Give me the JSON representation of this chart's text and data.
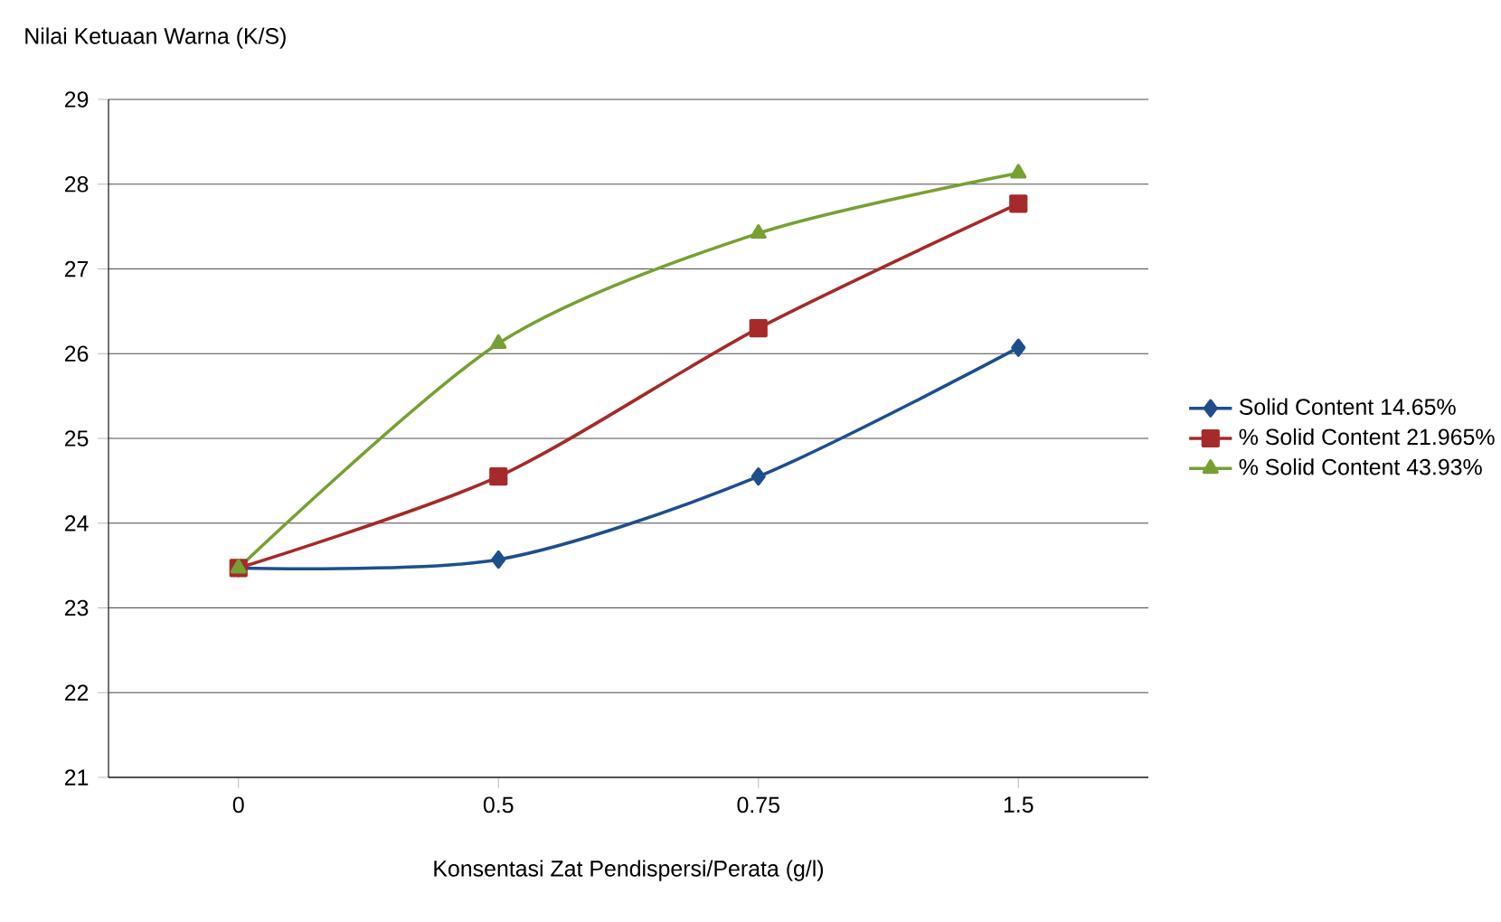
{
  "chart_data": {
    "type": "line",
    "ylabel": "Nilai Ketuaan Warna (K/S)",
    "xlabel": "Konsentasi Zat Pendispersi/Perata (g/l)",
    "categories": [
      "0",
      "0.5",
      "0.75",
      "1.5"
    ],
    "series": [
      {
        "name": "Solid Content 14.65%",
        "color": "#1f4e8c",
        "marker": "diamond",
        "values": [
          23.47,
          23.57,
          24.55,
          26.07
        ]
      },
      {
        "name": "% Solid Content 21.965%",
        "color": "#a52a2a",
        "marker": "square",
        "values": [
          23.47,
          24.55,
          26.3,
          27.77
        ]
      },
      {
        "name": "% Solid Content 43.93%",
        "color": "#77a033",
        "marker": "triangle",
        "values": [
          23.47,
          26.12,
          27.42,
          28.13
        ]
      }
    ],
    "ylim": [
      21,
      29
    ],
    "yticks": [
      21,
      22,
      23,
      24,
      25,
      26,
      27,
      28,
      29
    ],
    "grid": "y",
    "legend": "right",
    "line_style": "solid"
  }
}
